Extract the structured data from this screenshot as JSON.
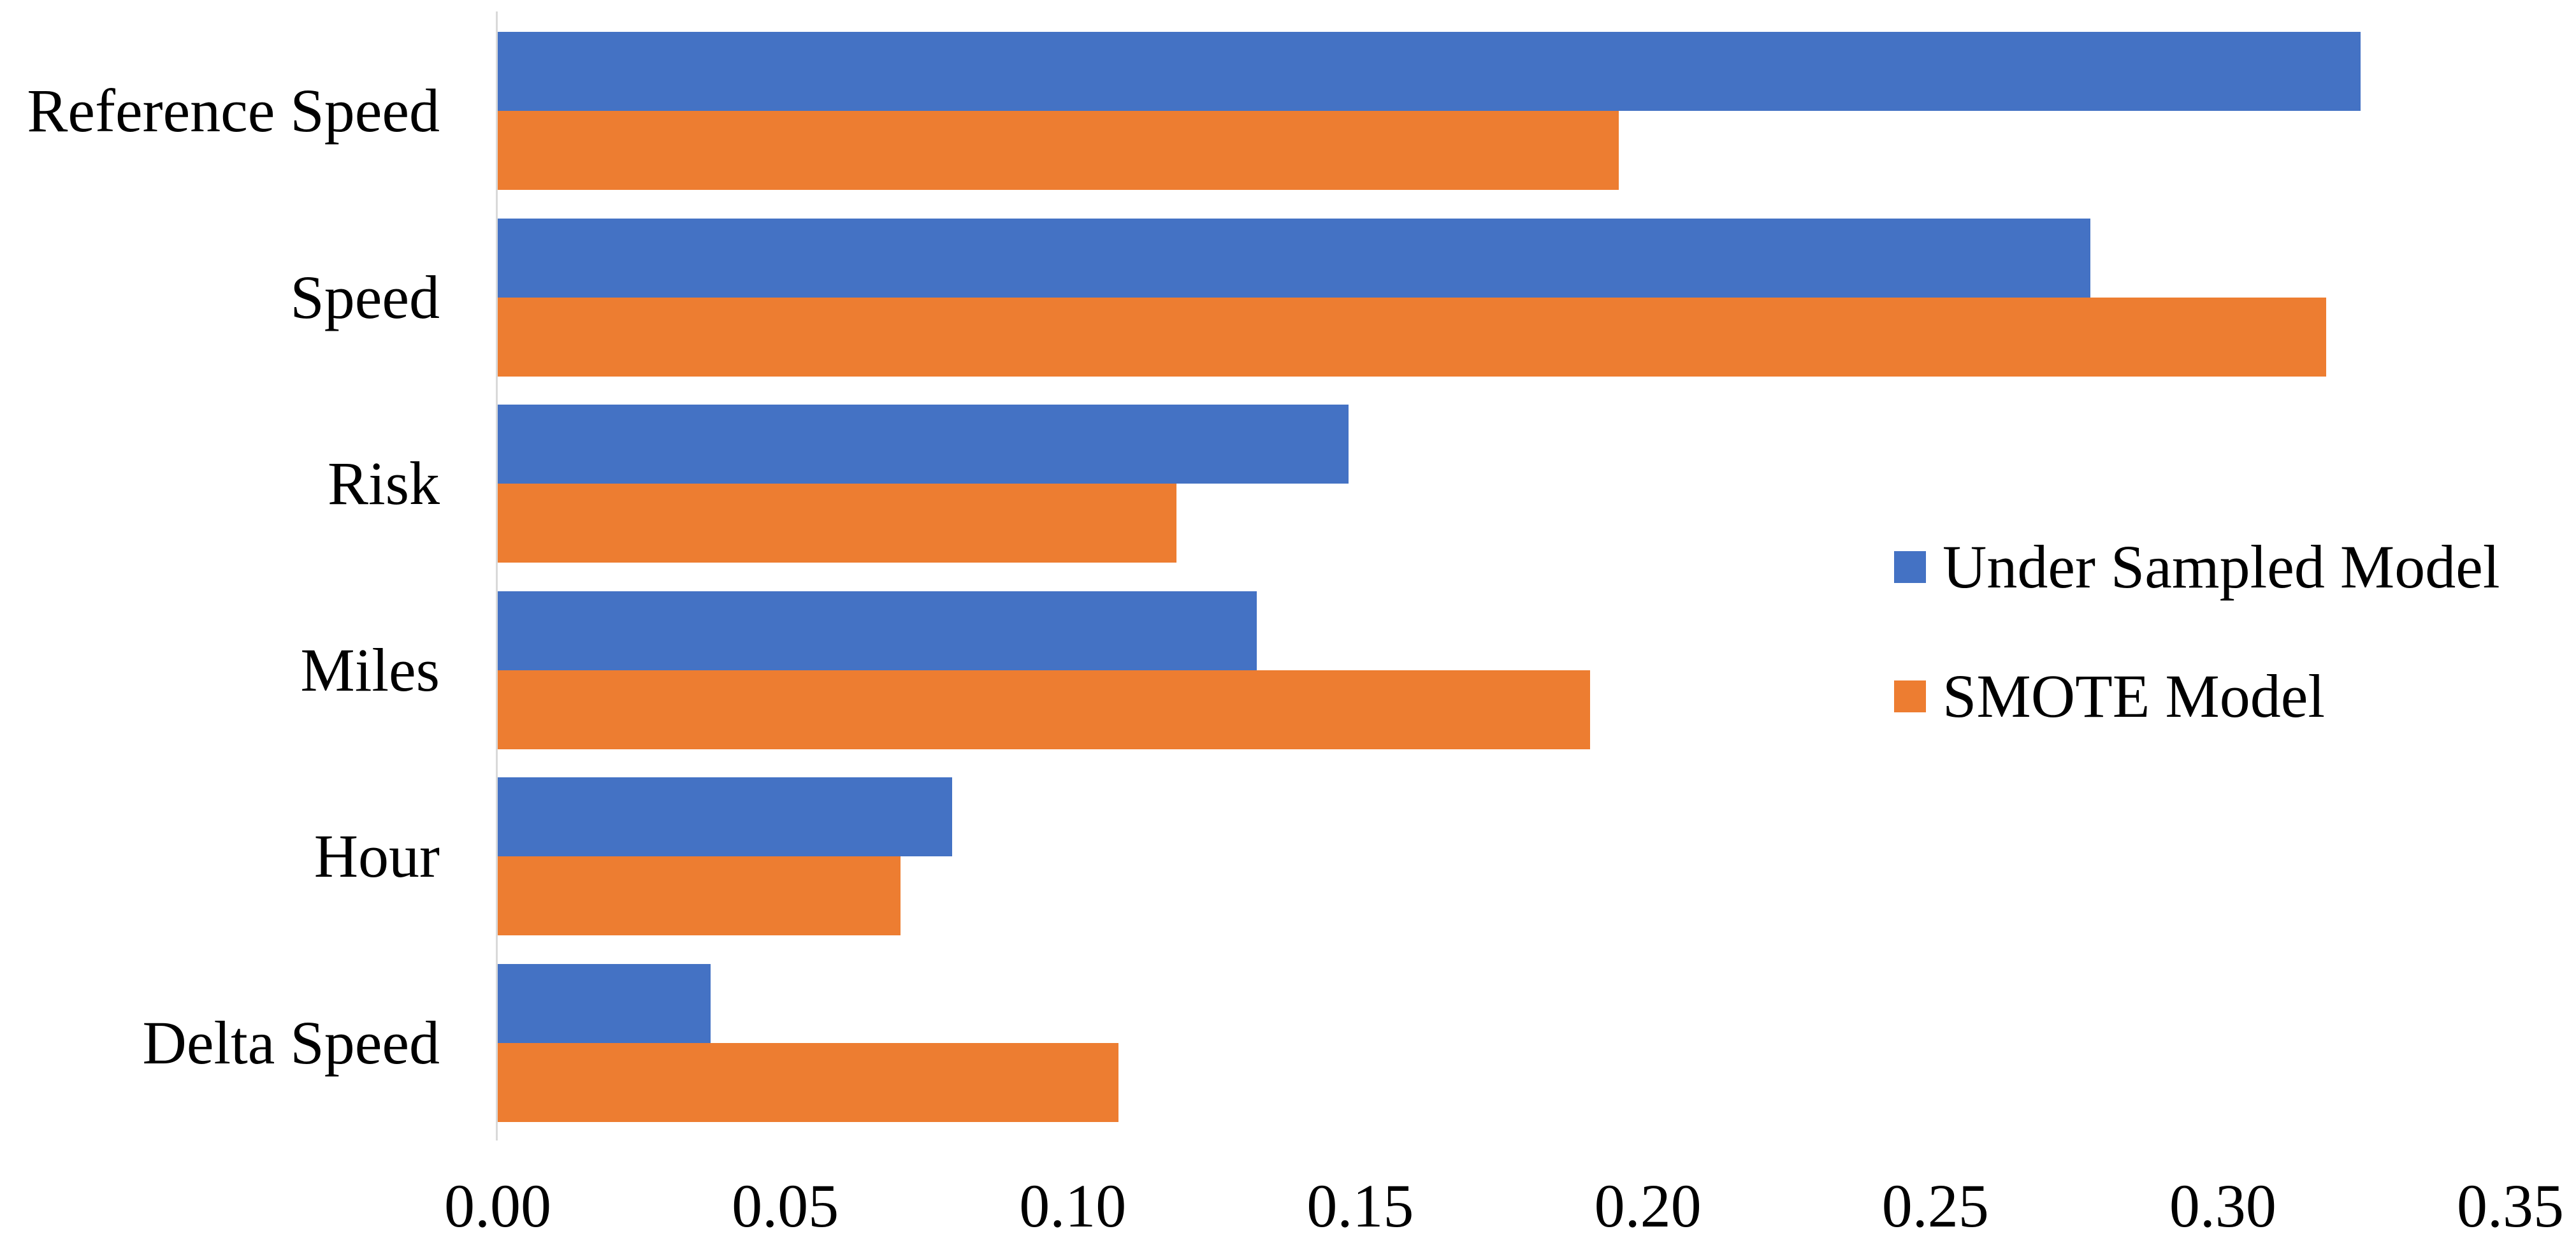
{
  "chart_data": {
    "type": "bar",
    "orientation": "horizontal",
    "title": "",
    "xlabel": "",
    "ylabel": "",
    "categories": [
      "Reference Speed",
      "Speed",
      "Risk",
      "Miles",
      "Hour",
      "Delta Speed"
    ],
    "series": [
      {
        "name": "Under Sampled Model",
        "color": "#4472C4",
        "values": [
          0.324,
          0.277,
          0.148,
          0.132,
          0.079,
          0.037
        ]
      },
      {
        "name": "SMOTE Model",
        "color": "#ED7D31",
        "values": [
          0.195,
          0.318,
          0.118,
          0.19,
          0.07,
          0.108
        ]
      }
    ],
    "xlim": [
      0,
      0.35
    ],
    "x_tick_step": 0.05,
    "x_ticks": [
      "0.00",
      "0.05",
      "0.10",
      "0.15",
      "0.20",
      "0.25",
      "0.30",
      "0.35"
    ],
    "grid": false,
    "legend_position": "center-right",
    "background_color": "#FFFFFF",
    "axis_line_color": "#D9D9D9",
    "text_color": "#000000"
  }
}
